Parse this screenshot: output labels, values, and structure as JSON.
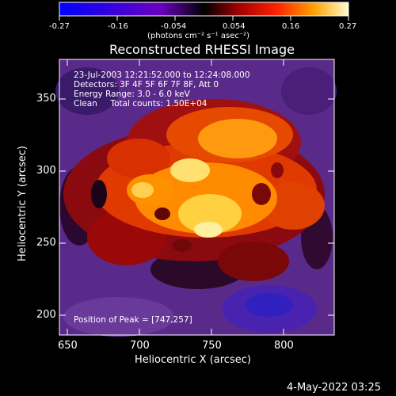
{
  "colorbar": {
    "ticks": [
      "-0.27",
      "-0.16",
      "-0.054",
      "0.054",
      "0.16",
      "0.27"
    ],
    "units": "(photons cm⁻² s⁻¹ asec⁻²)"
  },
  "plot": {
    "title": "Reconstructed RHESSI Image",
    "xlabel": "Heliocentric X (arcsec)",
    "ylabel": "Heliocentric Y (arcsec)",
    "xticks": [
      "650",
      "700",
      "750",
      "800"
    ],
    "yticks": [
      "350",
      "300",
      "250",
      "200"
    ]
  },
  "annotation": {
    "time": "23-Jul-2003 12:21:52.000 to 12:24:08.000",
    "detectors": "Detectors: 3F 4F 5F 6F 7F 8F, Att 0",
    "energy": "Energy Range: 3.0 - 6.0 keV",
    "clean": "Clean     Total counts: 1.50E+04",
    "peak": "Position of Peak = [747,257]"
  },
  "footer": {
    "date": "4-May-2022 03:25"
  }
}
